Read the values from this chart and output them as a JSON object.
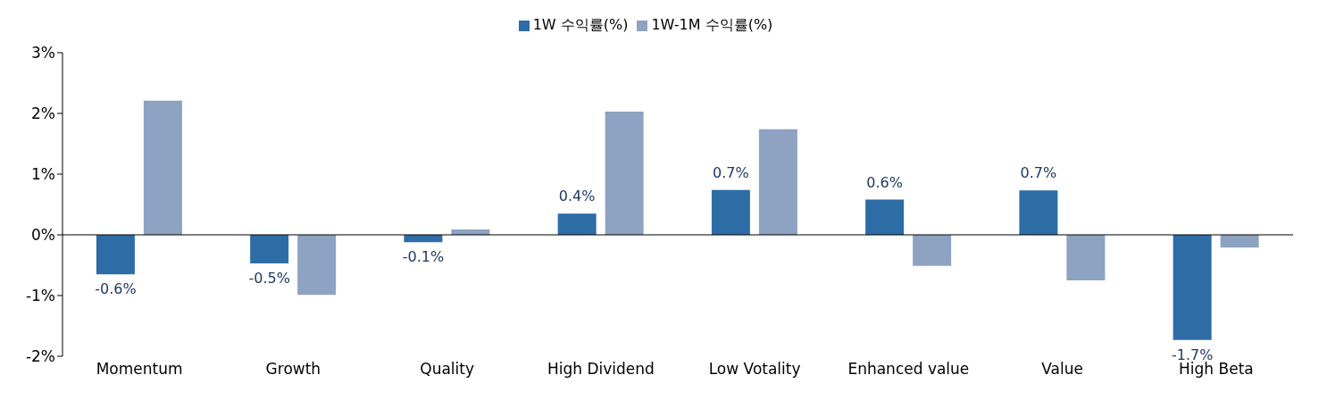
{
  "chart_data": {
    "type": "bar",
    "categories": [
      "Momentum",
      "Growth",
      "Quality",
      "High Dividend",
      "Low Votality",
      "Enhanced value",
      "Value",
      "High Beta"
    ],
    "series": [
      {
        "name": "1W 수익률(%)",
        "color": "#2e6ca6",
        "values": [
          -0.65,
          -0.47,
          -0.12,
          0.35,
          0.74,
          0.58,
          0.73,
          -1.73
        ],
        "value_labels": [
          "-0.6%",
          "-0.5%",
          "-0.1%",
          "0.4%",
          "0.7%",
          "0.6%",
          "0.7%",
          "-1.7%"
        ]
      },
      {
        "name": "1W-1M 수익률(%)",
        "color": "#8ea2c1",
        "values": [
          2.21,
          -0.99,
          0.09,
          2.03,
          1.74,
          -0.51,
          -0.75,
          -0.21
        ]
      }
    ],
    "ylim": [
      -2,
      3
    ],
    "yticks": [
      {
        "value": -2,
        "label": "-2%"
      },
      {
        "value": -1,
        "label": "-1%"
      },
      {
        "value": 0,
        "label": "0%"
      },
      {
        "value": 1,
        "label": "1%"
      },
      {
        "value": 2,
        "label": "2%"
      },
      {
        "value": 3,
        "label": "3%"
      }
    ],
    "legend": "top"
  }
}
